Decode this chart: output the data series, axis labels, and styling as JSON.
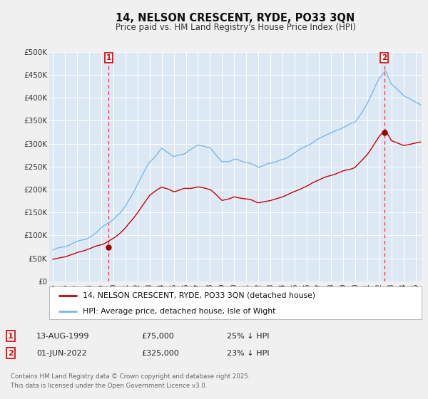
{
  "title": "14, NELSON CRESCENT, RYDE, PO33 3QN",
  "subtitle": "Price paid vs. HM Land Registry's House Price Index (HPI)",
  "ylim": [
    0,
    500000
  ],
  "xlim_start": 1994.7,
  "xlim_end": 2025.5,
  "yticks": [
    0,
    50000,
    100000,
    150000,
    200000,
    250000,
    300000,
    350000,
    400000,
    450000,
    500000
  ],
  "ytick_labels": [
    "£0",
    "£50K",
    "£100K",
    "£150K",
    "£200K",
    "£250K",
    "£300K",
    "£350K",
    "£400K",
    "£450K",
    "£500K"
  ],
  "xtick_years": [
    1995,
    1996,
    1997,
    1998,
    1999,
    2000,
    2001,
    2002,
    2003,
    2004,
    2005,
    2006,
    2007,
    2008,
    2009,
    2010,
    2011,
    2012,
    2013,
    2014,
    2015,
    2016,
    2017,
    2018,
    2019,
    2020,
    2021,
    2022,
    2023,
    2024,
    2025
  ],
  "background_color": "#dce9f5",
  "fig_color": "#f0f0f0",
  "grid_color": "#ffffff",
  "line_color_hpi": "#7ab8e8",
  "line_color_price": "#cc0000",
  "marker_color": "#990000",
  "dashed_line_color": "#ee3333",
  "legend_line1": "14, NELSON CRESCENT, RYDE, PO33 3QN (detached house)",
  "legend_line2": "HPI: Average price, detached house, Isle of Wight",
  "sale1_date": "13-AUG-1999",
  "sale1_price": "£75,000",
  "sale1_hpi": "25% ↓ HPI",
  "sale1_year": 1999.617,
  "sale1_value": 75000,
  "sale2_date": "01-JUN-2022",
  "sale2_price": "£325,000",
  "sale2_hpi": "23% ↓ HPI",
  "sale2_year": 2022.417,
  "sale2_value": 325000,
  "copyright_text": "Contains HM Land Registry data © Crown copyright and database right 2025.\nThis data is licensed under the Open Government Licence v3.0."
}
